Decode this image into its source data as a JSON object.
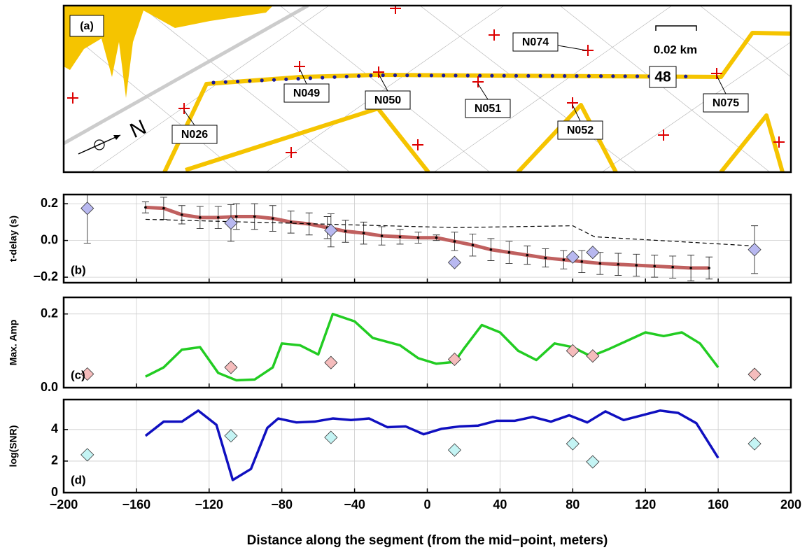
{
  "map": {
    "panel_label": "(a)",
    "scale": "0.02 km",
    "segment": "48",
    "north": "N",
    "stations": [
      "N074",
      "N049",
      "N050",
      "N051",
      "N075",
      "N026",
      "N052"
    ]
  },
  "chart_data": [
    {
      "type": "line",
      "panel_label": "(b)",
      "ylabel": "t-delay (s)",
      "xlim": [
        -200,
        200
      ],
      "ylim": [
        -0.23,
        0.25
      ],
      "yticks": [
        {
          "value": -0.2,
          "label": "−0.2"
        },
        {
          "value": 0,
          "label": "0.0"
        },
        0.2
      ],
      "grid": true,
      "series": [
        {
          "type": "line",
          "color": "#c0605f",
          "x": [
            -155,
            -145,
            -135,
            -125,
            -115,
            -105,
            -95,
            -85,
            -75,
            -65,
            -55,
            -45,
            -35,
            -25,
            -15,
            -5,
            5,
            15,
            25,
            35,
            45,
            55,
            65,
            75,
            85,
            95,
            105,
            115,
            125,
            135,
            145,
            155
          ],
          "values": [
            0.18,
            0.175,
            0.14,
            0.125,
            0.125,
            0.13,
            0.13,
            0.12,
            0.1,
            0.09,
            0.07,
            0.05,
            0.04,
            0.025,
            0.02,
            0.015,
            0.015,
            -0.005,
            -0.025,
            -0.05,
            -0.065,
            -0.08,
            -0.095,
            -0.105,
            -0.115,
            -0.125,
            -0.13,
            -0.135,
            -0.14,
            -0.145,
            -0.15,
            -0.15
          ],
          "errors": [
            0.03,
            0.06,
            0.05,
            0.06,
            0.06,
            0.07,
            0.07,
            0.07,
            0.06,
            0.06,
            0.06,
            0.06,
            0.06,
            0.05,
            0.04,
            0.03,
            0.015,
            0.05,
            0.06,
            0.06,
            0.06,
            0.05,
            0.05,
            0.05,
            0.06,
            0.06,
            0.06,
            0.06,
            0.06,
            0.06,
            0.07,
            0.06
          ]
        },
        {
          "type": "dashed",
          "color": "#000000",
          "x": [
            -155,
            15,
            80,
            92,
            180
          ],
          "values": [
            0.115,
            0.07,
            0.08,
            0.02,
            -0.03
          ]
        },
        {
          "type": "scatter",
          "color": "#b8b8f0",
          "x": [
            -187,
            -108,
            -53,
            15,
            80,
            91,
            180
          ],
          "values": [
            0.175,
            0.095,
            0.055,
            -0.12,
            -0.09,
            -0.065,
            -0.05
          ],
          "errors": [
            0.19,
            0.1,
            0.09,
            null,
            null,
            null,
            0.13
          ]
        }
      ]
    },
    {
      "type": "line",
      "panel_label": "(c)",
      "ylabel": "Max. Amp",
      "xlim": [
        -200,
        200
      ],
      "ylim": [
        0,
        0.245
      ],
      "yticks": [
        {
          "value": 0,
          "label": "0.0"
        },
        0.2
      ],
      "grid": true,
      "series": [
        {
          "type": "line",
          "color": "#22cc22",
          "x": [
            -155,
            -145,
            -135,
            -125,
            -115,
            -105,
            -95,
            -85,
            -80,
            -70,
            -60,
            -52,
            -40,
            -30,
            -15,
            -5,
            5,
            15,
            20,
            30,
            40,
            50,
            60,
            70,
            80,
            90,
            100,
            120,
            130,
            140,
            150,
            160
          ],
          "values": [
            0.03,
            0.055,
            0.103,
            0.11,
            0.04,
            0.02,
            0.022,
            0.055,
            0.12,
            0.115,
            0.09,
            0.2,
            0.18,
            0.135,
            0.115,
            0.08,
            0.065,
            0.07,
            0.105,
            0.17,
            0.15,
            0.1,
            0.075,
            0.12,
            0.11,
            0.085,
            0.105,
            0.15,
            0.14,
            0.15,
            0.12,
            0.055
          ]
        },
        {
          "type": "scatter",
          "color": "#f5bcbc",
          "x": [
            -187,
            -108,
            -53,
            15,
            80,
            91,
            180
          ],
          "values": [
            0.037,
            0.055,
            0.068,
            0.077,
            0.1,
            0.086,
            0.036
          ]
        }
      ]
    },
    {
      "type": "line",
      "panel_label": "(d)",
      "ylabel": "log(SNR)",
      "xlabel": "Distance along the segment (from the mid−point, meters)",
      "xlim": [
        -200,
        200
      ],
      "ylim": [
        0,
        5.9
      ],
      "yticks": [
        0,
        2,
        4
      ],
      "grid": true,
      "xticks": [
        {
          "value": -200,
          "label": "−200"
        },
        {
          "value": -160,
          "label": "−160"
        },
        {
          "value": -120,
          "label": "−120"
        },
        {
          "value": -80,
          "label": "−80"
        },
        {
          "value": -40,
          "label": "−40"
        },
        0,
        40,
        80,
        120,
        160,
        200
      ],
      "series": [
        {
          "type": "line",
          "color": "#1010c0",
          "x": [
            -155,
            -145,
            -135,
            -126,
            -116,
            -107,
            -97,
            -88,
            -82,
            -72,
            -62,
            -52,
            -42,
            -32,
            -22,
            -12,
            -2,
            8,
            18,
            28,
            38,
            48,
            58,
            68,
            78,
            88,
            98,
            108,
            118,
            128,
            138,
            148,
            160
          ],
          "values": [
            3.6,
            4.5,
            4.5,
            5.2,
            4.3,
            0.8,
            1.5,
            4.1,
            4.7,
            4.45,
            4.5,
            4.7,
            4.6,
            4.7,
            4.15,
            4.2,
            3.7,
            4.05,
            4.2,
            4.25,
            4.55,
            4.55,
            4.8,
            4.5,
            4.9,
            4.45,
            5.15,
            4.6,
            4.9,
            5.2,
            5.05,
            4.4,
            2.2
          ]
        },
        {
          "type": "scatter",
          "color": "#c4f4f4",
          "x": [
            -187,
            -108,
            -53,
            15,
            80,
            91,
            180
          ],
          "values": [
            2.4,
            3.6,
            3.5,
            2.7,
            3.1,
            1.95,
            3.1
          ]
        }
      ]
    }
  ]
}
